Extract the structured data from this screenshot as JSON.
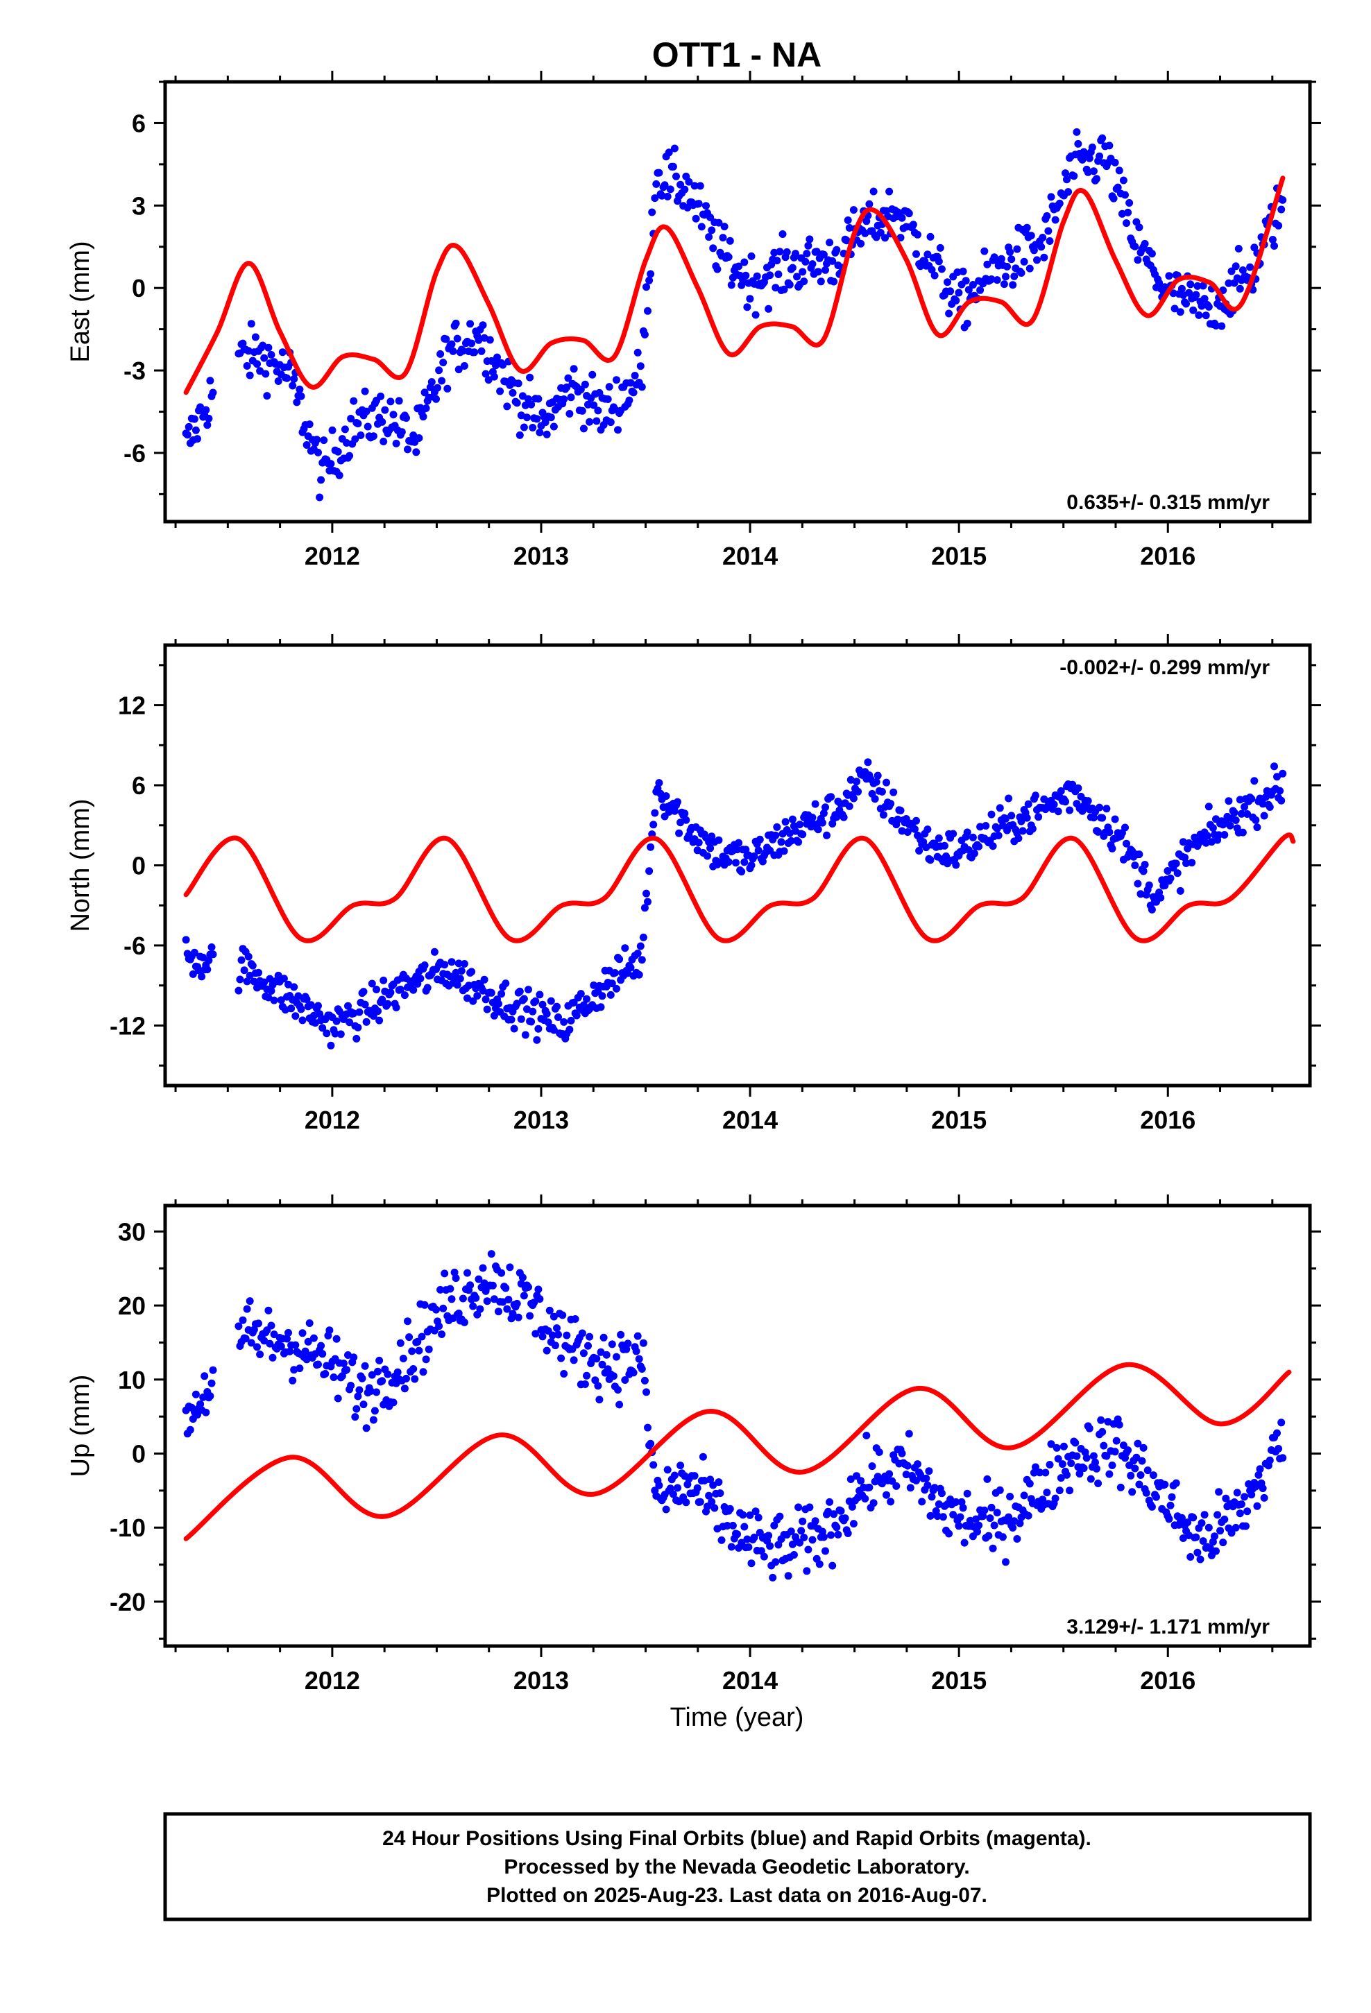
{
  "chart_data": {
    "type": "scatter",
    "title": "OTT1 - NA",
    "xlabel": "Time (year)",
    "xlim": [
      2011.2,
      2016.68
    ],
    "x_ticks": [
      "2012",
      "2013",
      "2014",
      "2015",
      "2016"
    ],
    "colors": {
      "data": "#0000ff",
      "model": "#ff0000",
      "axes": "#000000"
    },
    "panels": [
      {
        "name": "east",
        "ylabel": "East (mm)",
        "ylim": [
          -8.5,
          7.5
        ],
        "y_ticks": [
          "6",
          "3",
          "0",
          "-3",
          "-6"
        ],
        "rate": "0.635+/- 0.315 mm/yr",
        "rate_position": "bottom-right",
        "observed": {
          "x": [
            2011.3,
            2011.5,
            2011.65,
            2011.8,
            2011.95,
            2012.1,
            2012.25,
            2012.4,
            2012.55,
            2012.7,
            2012.85,
            2013.0,
            2013.15,
            2013.3,
            2013.48,
            2013.55,
            2013.7,
            2013.85,
            2014.0,
            2014.2,
            2014.4,
            2014.55,
            2014.7,
            2014.85,
            2015.0,
            2015.2,
            2015.4,
            2015.55,
            2015.7,
            2015.85,
            2016.0,
            2016.2,
            2016.4,
            2016.55
          ],
          "y": [
            -5.8,
            -2.6,
            -2.4,
            -3.2,
            -6.8,
            -5.0,
            -4.6,
            -5.6,
            -2.4,
            -1.6,
            -3.6,
            -5.0,
            -3.6,
            -4.6,
            -3.2,
            4.2,
            3.6,
            1.4,
            0.2,
            0.8,
            1.0,
            2.2,
            2.8,
            1.2,
            -0.6,
            0.8,
            1.6,
            4.4,
            4.8,
            1.6,
            -0.2,
            -0.8,
            0.6,
            3.2
          ],
          "spread": 1.0
        },
        "model": {
          "x": [
            2011.3,
            2011.45,
            2011.6,
            2011.75,
            2011.9,
            2012.05,
            2012.2,
            2012.35,
            2012.5,
            2012.6,
            2012.75,
            2012.9,
            2013.05,
            2013.2,
            2013.35,
            2013.5,
            2013.6,
            2013.75,
            2013.9,
            2014.05,
            2014.2,
            2014.35,
            2014.5,
            2014.6,
            2014.75,
            2014.9,
            2015.05,
            2015.2,
            2015.35,
            2015.5,
            2015.6,
            2015.75,
            2015.9,
            2016.05,
            2016.2,
            2016.35,
            2016.55
          ],
          "y": [
            -3.8,
            -1.6,
            0.9,
            -1.6,
            -3.6,
            -2.5,
            -2.6,
            -3.1,
            0.6,
            1.5,
            -0.6,
            -3.0,
            -2.0,
            -1.9,
            -2.5,
            1.0,
            2.2,
            0.0,
            -2.4,
            -1.4,
            -1.4,
            -1.9,
            2.0,
            2.8,
            1.0,
            -1.7,
            -0.5,
            -0.5,
            -1.2,
            2.4,
            3.5,
            1.0,
            -1.0,
            0.3,
            0.2,
            -0.6,
            4.0
          ]
        }
      },
      {
        "name": "north",
        "ylabel": "North (mm)",
        "ylim": [
          -16.5,
          16.5
        ],
        "y_ticks": [
          "12",
          "6",
          "0",
          "-6",
          "-12"
        ],
        "rate": "-0.002+/- 0.299 mm/yr",
        "rate_position": "top-right",
        "observed": {
          "x": [
            2011.3,
            2011.6,
            2011.8,
            2012.0,
            2012.15,
            2012.35,
            2012.55,
            2012.75,
            2012.95,
            2013.1,
            2013.3,
            2013.48,
            2013.55,
            2013.7,
            2013.85,
            2014.0,
            2014.2,
            2014.4,
            2014.55,
            2014.7,
            2014.85,
            2015.0,
            2015.2,
            2015.4,
            2015.55,
            2015.75,
            2015.95,
            2016.1,
            2016.3,
            2016.55
          ],
          "y": [
            -6.8,
            -7.8,
            -10.0,
            -12.0,
            -11.0,
            -9.0,
            -7.8,
            -9.6,
            -11.0,
            -12.0,
            -9.0,
            -7.0,
            6.0,
            3.0,
            0.8,
            0.4,
            2.5,
            4.0,
            6.5,
            4.0,
            1.5,
            1.0,
            2.8,
            4.2,
            5.6,
            2.5,
            -2.5,
            1.0,
            3.5,
            6.0
          ],
          "spread": 1.5
        },
        "model": {
          "x": [
            2011.3,
            2011.55,
            2011.85,
            2012.1,
            2012.3,
            2012.55,
            2012.85,
            2013.1,
            2013.3,
            2013.55,
            2013.85,
            2014.1,
            2014.3,
            2014.55,
            2014.85,
            2015.1,
            2015.3,
            2015.55,
            2015.85,
            2016.1,
            2016.3,
            2016.55,
            2016.6
          ],
          "y": [
            -2.2,
            2.0,
            -5.5,
            -3.0,
            -2.5,
            2.0,
            -5.5,
            -3.0,
            -2.5,
            2.0,
            -5.5,
            -3.0,
            -2.5,
            2.0,
            -5.5,
            -3.0,
            -2.5,
            2.0,
            -5.5,
            -3.0,
            -2.5,
            2.0,
            1.8
          ]
        }
      },
      {
        "name": "up",
        "ylabel": "Up (mm)",
        "ylim": [
          -26,
          33.5
        ],
        "y_ticks": [
          "30",
          "20",
          "10",
          "0",
          "-10",
          "-20"
        ],
        "rate": "3.129+/- 1.171 mm/yr",
        "rate_position": "bottom-right",
        "observed": {
          "x": [
            2011.3,
            2011.6,
            2011.8,
            2012.0,
            2012.15,
            2012.35,
            2012.55,
            2012.75,
            2012.95,
            2013.15,
            2013.35,
            2013.48,
            2013.55,
            2013.7,
            2013.85,
            2014.0,
            2014.15,
            2014.35,
            2014.55,
            2014.75,
            2014.95,
            2015.15,
            2015.35,
            2015.55,
            2015.75,
            2015.95,
            2016.15,
            2016.35,
            2016.55
          ],
          "y": [
            5.0,
            16.0,
            15.0,
            12.0,
            8.0,
            13.0,
            20.0,
            24.0,
            20.0,
            14.0,
            12.0,
            13.0,
            -6.0,
            -4.0,
            -8.0,
            -12.0,
            -13.0,
            -11.0,
            -4.0,
            -2.0,
            -8.0,
            -10.0,
            -6.0,
            0.0,
            1.0,
            -5.0,
            -12.0,
            -8.0,
            2.0
          ],
          "spread": 4.5
        },
        "model": {
          "x": [
            2011.3,
            2011.8,
            2012.25,
            2012.8,
            2013.25,
            2013.8,
            2014.25,
            2014.8,
            2015.25,
            2015.8,
            2016.25,
            2016.58
          ],
          "y": [
            -11.5,
            -0.5,
            -8.5,
            2.5,
            -5.5,
            5.7,
            -2.5,
            8.8,
            0.8,
            12.0,
            4.0,
            11.0
          ]
        }
      }
    ]
  },
  "footer": {
    "line1": "24 Hour Positions Using Final Orbits (blue) and Rapid Orbits (magenta).",
    "line2": "Processed by the Nevada Geodetic Laboratory.",
    "line3": "Plotted on 2025-Aug-23. Last data on 2016-Aug-07."
  }
}
